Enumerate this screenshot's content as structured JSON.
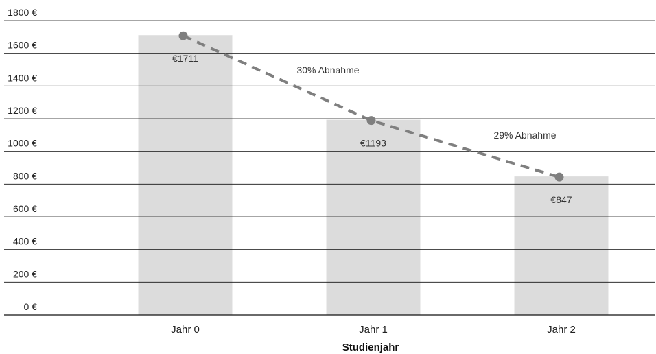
{
  "chart_data": {
    "type": "bar",
    "categories": [
      "Jahr 0",
      "Jahr 1",
      "Jahr 2"
    ],
    "values": [
      1711,
      1193,
      847
    ],
    "data_labels": [
      "€1711",
      "€1193",
      "€847"
    ],
    "xlabel": "Studienjahr",
    "ylabel": "",
    "ylim": [
      0,
      1800
    ],
    "yticks": [
      0,
      200,
      400,
      600,
      800,
      1000,
      1200,
      1400,
      1600,
      1800
    ],
    "ytick_labels": [
      "0 €",
      "200 €",
      "400 €",
      "600 €",
      "800 €",
      "1000 €",
      "1200 €",
      "1400 €",
      "1600 €",
      "1800 €"
    ],
    "grid": true,
    "bar_color": "#dcdcdc",
    "trend_line": {
      "style": "dashed",
      "color": "#7f7f7f",
      "points": [
        1711,
        1193,
        847
      ]
    },
    "annotations": [
      {
        "text": "30% Abnahme",
        "between": [
          "Jahr 0",
          "Jahr 1"
        ]
      },
      {
        "text": "29% Abnahme",
        "between": [
          "Jahr 1",
          "Jahr 2"
        ]
      }
    ]
  }
}
